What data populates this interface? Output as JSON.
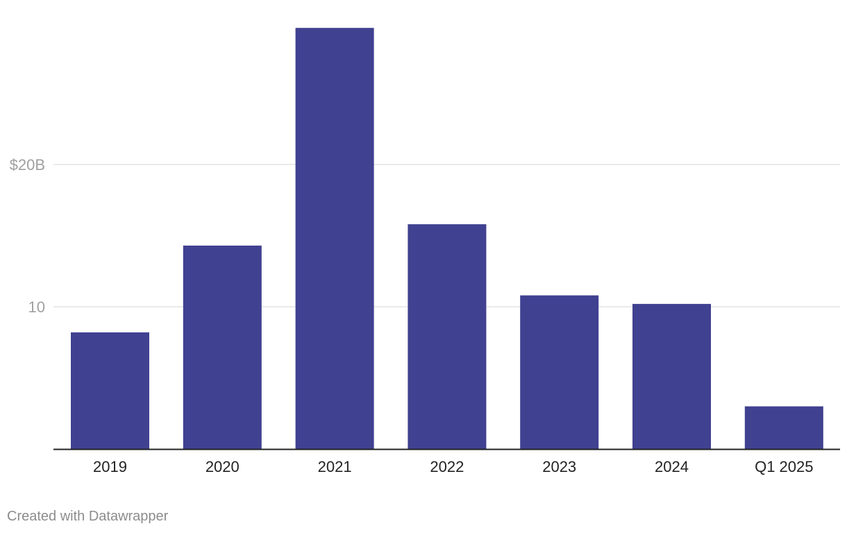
{
  "chart_data": {
    "type": "bar",
    "categories": [
      "2019",
      "2020",
      "2021",
      "2022",
      "2023",
      "2024",
      "Q1 2025"
    ],
    "values": [
      8.2,
      14.3,
      29.6,
      15.8,
      10.8,
      10.2,
      3.0
    ],
    "y_ticks": [
      {
        "value": 10,
        "label": "10"
      },
      {
        "value": 20,
        "label": "$20B"
      }
    ],
    "ylim": [
      0,
      29.6
    ],
    "grid": true,
    "bar_color": "#404190",
    "title": "",
    "xlabel": "",
    "ylabel": ""
  },
  "credit": "Created with Datawrapper"
}
